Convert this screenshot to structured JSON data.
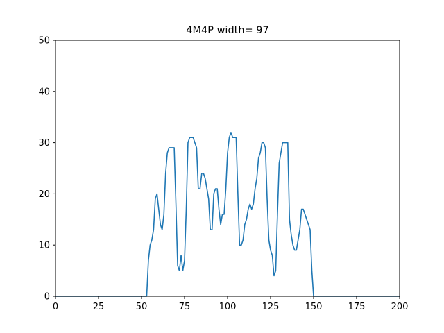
{
  "chart_data": {
    "type": "line",
    "title": "4M4P width= 97",
    "xlabel": "",
    "ylabel": "",
    "xlim": [
      0,
      200
    ],
    "ylim": [
      0,
      50
    ],
    "xticks": [
      "0",
      "25",
      "50",
      "75",
      "100",
      "125",
      "150",
      "175",
      "200"
    ],
    "yticks": [
      "0",
      "10",
      "20",
      "30",
      "40",
      "50"
    ],
    "grid": false,
    "series_color": "#1f77b4",
    "series": [
      {
        "points": [
          [
            0,
            0
          ],
          [
            10,
            0
          ],
          [
            20,
            0
          ],
          [
            30,
            0
          ],
          [
            40,
            0
          ],
          [
            50,
            0
          ],
          [
            53,
            0
          ],
          [
            54,
            7
          ],
          [
            55,
            10
          ],
          [
            56,
            11
          ],
          [
            57,
            13
          ],
          [
            58,
            19
          ],
          [
            59,
            20
          ],
          [
            60,
            17
          ],
          [
            61,
            14
          ],
          [
            62,
            13
          ],
          [
            63,
            16
          ],
          [
            64,
            24
          ],
          [
            65,
            28
          ],
          [
            66,
            29
          ],
          [
            67,
            29
          ],
          [
            68,
            29
          ],
          [
            69,
            29
          ],
          [
            70,
            18
          ],
          [
            71,
            6
          ],
          [
            72,
            5
          ],
          [
            73,
            8
          ],
          [
            74,
            5
          ],
          [
            75,
            7
          ],
          [
            76,
            17
          ],
          [
            77,
            30
          ],
          [
            78,
            31
          ],
          [
            79,
            31
          ],
          [
            80,
            31
          ],
          [
            81,
            30
          ],
          [
            82,
            29
          ],
          [
            83,
            21
          ],
          [
            84,
            21
          ],
          [
            85,
            24
          ],
          [
            86,
            24
          ],
          [
            87,
            23
          ],
          [
            88,
            21
          ],
          [
            89,
            19
          ],
          [
            90,
            13
          ],
          [
            91,
            13
          ],
          [
            92,
            20
          ],
          [
            93,
            21
          ],
          [
            94,
            21
          ],
          [
            95,
            17
          ],
          [
            96,
            14
          ],
          [
            97,
            16
          ],
          [
            98,
            16
          ],
          [
            99,
            21
          ],
          [
            100,
            28
          ],
          [
            101,
            31
          ],
          [
            102,
            32
          ],
          [
            103,
            31
          ],
          [
            104,
            31
          ],
          [
            105,
            31
          ],
          [
            106,
            20
          ],
          [
            107,
            10
          ],
          [
            108,
            10
          ],
          [
            109,
            11
          ],
          [
            110,
            14
          ],
          [
            111,
            15
          ],
          [
            112,
            17
          ],
          [
            113,
            18
          ],
          [
            114,
            17
          ],
          [
            115,
            18
          ],
          [
            116,
            21
          ],
          [
            117,
            23
          ],
          [
            118,
            27
          ],
          [
            119,
            28
          ],
          [
            120,
            30
          ],
          [
            121,
            30
          ],
          [
            122,
            29
          ],
          [
            123,
            19
          ],
          [
            124,
            11
          ],
          [
            125,
            9
          ],
          [
            126,
            8
          ],
          [
            127,
            4
          ],
          [
            128,
            5
          ],
          [
            129,
            16
          ],
          [
            130,
            26
          ],
          [
            131,
            28
          ],
          [
            132,
            30
          ],
          [
            133,
            30
          ],
          [
            134,
            30
          ],
          [
            135,
            30
          ],
          [
            136,
            15
          ],
          [
            137,
            12
          ],
          [
            138,
            10
          ],
          [
            139,
            9
          ],
          [
            140,
            9
          ],
          [
            141,
            11
          ],
          [
            142,
            13
          ],
          [
            143,
            17
          ],
          [
            144,
            17
          ],
          [
            145,
            16
          ],
          [
            146,
            15
          ],
          [
            147,
            14
          ],
          [
            148,
            13
          ],
          [
            149,
            5
          ],
          [
            150,
            0
          ],
          [
            160,
            0
          ],
          [
            170,
            0
          ],
          [
            180,
            0
          ],
          [
            190,
            0
          ],
          [
            200,
            0
          ]
        ]
      }
    ]
  }
}
